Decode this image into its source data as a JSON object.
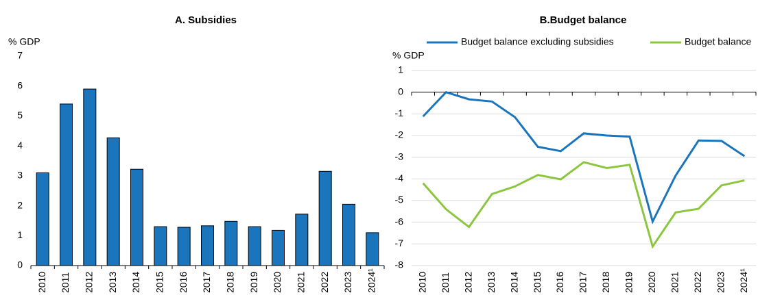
{
  "chart_data": [
    {
      "type": "bar",
      "title": "A. Subsidies",
      "ylabel": "% GDP",
      "categories": [
        "2010",
        "2011",
        "2012",
        "2013",
        "2014",
        "2015",
        "2016",
        "2017",
        "2018",
        "2019",
        "2020",
        "2021",
        "2022",
        "2023",
        "2024¹"
      ],
      "values": [
        3.1,
        5.4,
        5.9,
        4.27,
        3.22,
        1.3,
        1.28,
        1.33,
        1.48,
        1.3,
        1.18,
        1.72,
        3.15,
        2.05,
        1.1
      ],
      "color": "#1a75bc",
      "ylim": [
        0,
        7
      ],
      "yticks": [
        0,
        1,
        2,
        3,
        4,
        5,
        6,
        7
      ],
      "grid": false
    },
    {
      "type": "line",
      "title": "B.Budget balance",
      "ylabel": "% GDP",
      "categories": [
        "2010",
        "2011",
        "2012",
        "2013",
        "2014",
        "2015",
        "2016",
        "2017",
        "2018",
        "2019",
        "2020",
        "2021",
        "2022",
        "2023",
        "2024¹"
      ],
      "series": [
        {
          "name": "Budget balance excluding subsidies",
          "color": "#1a75bc",
          "values": [
            -1.12,
            0,
            -0.33,
            -0.43,
            -1.15,
            -2.52,
            -2.72,
            -1.9,
            -2.0,
            -2.05,
            -5.97,
            -3.85,
            -2.23,
            -2.25,
            -2.95
          ]
        },
        {
          "name": "Budget balance",
          "color": "#8cc63f",
          "values": [
            -4.2,
            -5.4,
            -6.22,
            -4.7,
            -4.35,
            -3.82,
            -4.02,
            -3.23,
            -3.5,
            -3.35,
            -7.12,
            -5.55,
            -5.38,
            -4.3,
            -4.07
          ]
        }
      ],
      "ylim": [
        -8,
        1
      ],
      "yticks": [
        -8,
        -7,
        -6,
        -5,
        -4,
        -3,
        -2,
        -1,
        0,
        1
      ],
      "grid": true,
      "legend": "top"
    }
  ]
}
